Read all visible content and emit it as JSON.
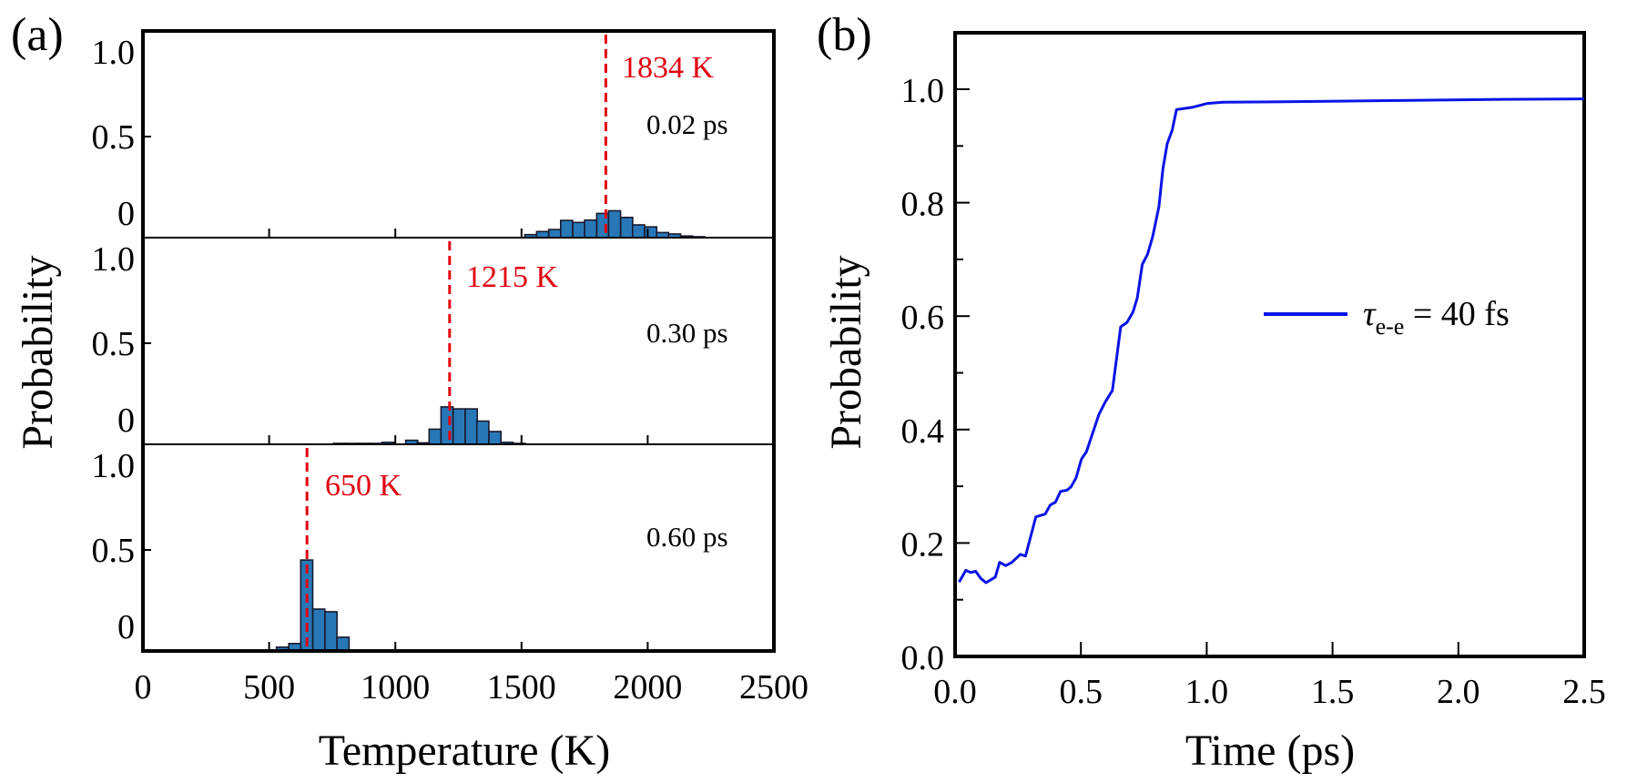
{
  "figure": {
    "panel_a_label": "(a)",
    "panel_b_label": "(b)"
  },
  "chart_data": [
    {
      "type": "bar",
      "id": "panel-a",
      "title": "",
      "xlabel": "Temperature (K)",
      "ylabel": "Probability",
      "xlim": [
        0,
        2500
      ],
      "ylim": [
        0,
        1.0
      ],
      "xticks": [
        0,
        500,
        1000,
        1500,
        2000,
        2500
      ],
      "xtick_labels": [
        "0",
        "500",
        "1000",
        "1500",
        "2000",
        "2500"
      ],
      "yticks": [
        0,
        0.5,
        1.0
      ],
      "ytick_labels": [
        "0",
        "0.5",
        "1.0"
      ],
      "bar_color": "#2878b8",
      "bar_edge_color": "#1a1a2e",
      "marker_color": "#e3000f",
      "bin_width_K": 47.5,
      "subplots": [
        {
          "time_label": "0.02 ps",
          "mean_label": "1834 K",
          "mean_value": 1834,
          "bins_left_K": [
            1513,
            1560,
            1608,
            1655,
            1703,
            1750,
            1798,
            1845,
            1893,
            1940,
            1988,
            2035,
            2083,
            2130,
            2178
          ],
          "values": [
            0.015,
            0.03,
            0.04,
            0.085,
            0.075,
            0.087,
            0.12,
            0.133,
            0.1,
            0.063,
            0.053,
            0.025,
            0.018,
            0.008,
            0.004
          ]
        },
        {
          "time_label": "0.30 ps",
          "mean_label": "1215 K",
          "mean_value": 1215,
          "bins_left_K": [
            755,
            803,
            850,
            898,
            947,
            992,
            1041,
            1086,
            1134,
            1181,
            1229,
            1277,
            1323,
            1371,
            1419,
            1467
          ],
          "values": [
            0.002,
            0.002,
            0.002,
            0.002,
            0.01,
            0.0,
            0.02,
            0.007,
            0.075,
            0.185,
            0.175,
            0.175,
            0.115,
            0.063,
            0.01,
            0.004
          ]
        },
        {
          "time_label": "0.60 ps",
          "mean_label": "650 K",
          "mean_value": 650,
          "bins_left_K": [
            529,
            578,
            625,
            673,
            721,
            769
          ],
          "values": [
            0.019,
            0.037,
            0.45,
            0.207,
            0.194,
            0.068
          ]
        }
      ]
    },
    {
      "type": "line",
      "id": "panel-b",
      "title": "",
      "xlabel": "Time (ps)",
      "ylabel": "Probability",
      "xlim": [
        0,
        2.5
      ],
      "ylim": [
        0,
        1.1
      ],
      "xticks": [
        0,
        0.5,
        1.0,
        1.5,
        2.0,
        2.5
      ],
      "xtick_labels": [
        "0.0",
        "0.5",
        "1.0",
        "1.5",
        "2.0",
        "2.5"
      ],
      "yticks": [
        0,
        0.2,
        0.4,
        0.6,
        0.8,
        1.0
      ],
      "ytick_labels": [
        "0.0",
        "0.2",
        "0.4",
        "0.6",
        "0.8",
        "1.0"
      ],
      "yminor_ticks": [
        0.1,
        0.3,
        0.5,
        0.7,
        0.9
      ],
      "grid": false,
      "legend_position": "center-right",
      "series": [
        {
          "name": "τe-e = 40 fs",
          "legend_symbol": "τ",
          "legend_subscript": "e-e",
          "legend_suffix": " = 40 fs",
          "color": "#0a14e6",
          "x": [
            0.016,
            0.043,
            0.062,
            0.082,
            0.103,
            0.123,
            0.16,
            0.177,
            0.201,
            0.226,
            0.259,
            0.28,
            0.321,
            0.358,
            0.378,
            0.399,
            0.419,
            0.444,
            0.461,
            0.481,
            0.502,
            0.522,
            0.543,
            0.572,
            0.596,
            0.625,
            0.658,
            0.683,
            0.707,
            0.724,
            0.744,
            0.765,
            0.785,
            0.81,
            0.826,
            0.843,
            0.863,
            0.88,
            0.942,
            1.003,
            1.065,
            1.312,
            1.723,
            2.134,
            2.5
          ],
          "y": [
            0.131,
            0.152,
            0.148,
            0.15,
            0.137,
            0.13,
            0.14,
            0.166,
            0.16,
            0.166,
            0.18,
            0.177,
            0.246,
            0.251,
            0.267,
            0.272,
            0.291,
            0.293,
            0.299,
            0.315,
            0.348,
            0.361,
            0.389,
            0.427,
            0.448,
            0.469,
            0.581,
            0.589,
            0.607,
            0.632,
            0.691,
            0.709,
            0.74,
            0.793,
            0.86,
            0.904,
            0.928,
            0.964,
            0.968,
            0.975,
            0.977,
            0.978,
            0.98,
            0.982,
            0.983
          ]
        }
      ]
    }
  ]
}
